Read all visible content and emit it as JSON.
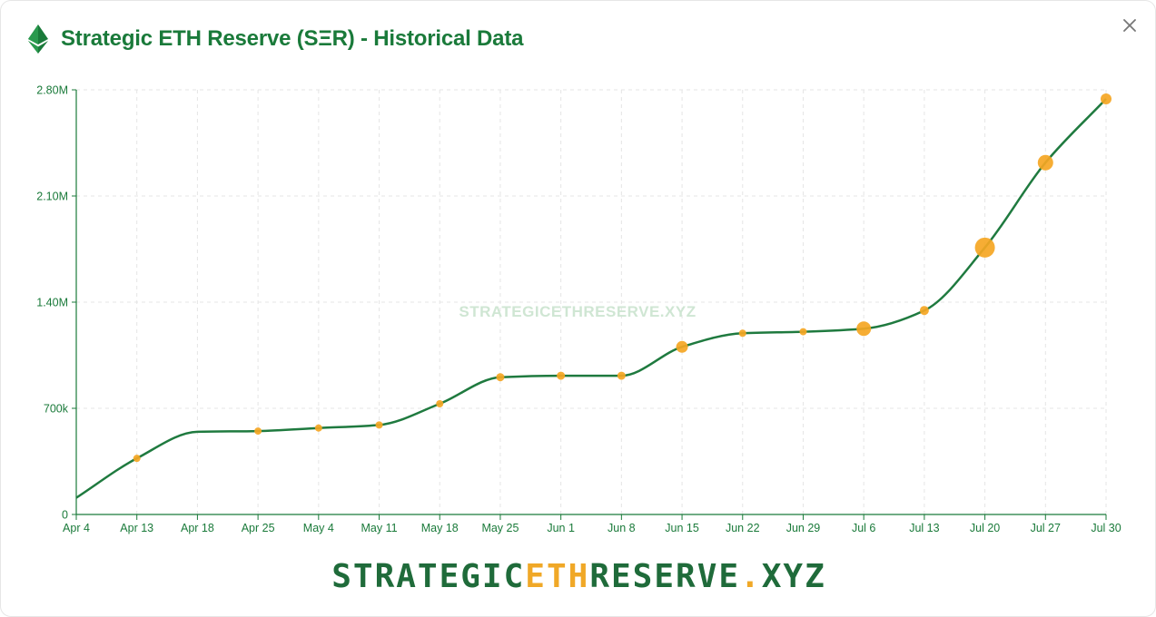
{
  "header": {
    "title": "Strategic ETH Reserve (SΞR) - Historical Data",
    "icon": "ethereum-icon"
  },
  "close": {
    "label": "×",
    "icon": "close-icon"
  },
  "watermark": "STRATEGICETHRESERVE.XYZ",
  "footer": {
    "part1": "STRATEGIC",
    "part2": "ETH",
    "part3": "RESERVE",
    "part4": ".",
    "part5": "XYZ"
  },
  "colors": {
    "brand_green": "#1a7a3a",
    "line": "#1f7a3f",
    "point": "#f5a623",
    "grid": "#e5e5e5"
  },
  "chart_data": {
    "type": "line",
    "title": "Strategic ETH Reserve (SΞR) - Historical Data",
    "xlabel": "",
    "ylabel": "",
    "categories": [
      "Apr 4",
      "Apr 13",
      "Apr 18",
      "Apr 25",
      "May 4",
      "May 11",
      "May 18",
      "May 25",
      "Jun 1",
      "Jun 8",
      "Jun 15",
      "Jun 22",
      "Jun 29",
      "Jul 6",
      "Jul 13",
      "Jul 20",
      "Jul 27",
      "Jul 30"
    ],
    "y_ticks": [
      {
        "value": 0,
        "label": "0"
      },
      {
        "value": 700000,
        "label": "700k"
      },
      {
        "value": 1400000,
        "label": "1.40M"
      },
      {
        "value": 2100000,
        "label": "2.10M"
      },
      {
        "value": 2800000,
        "label": "2.80M"
      }
    ],
    "ylim": [
      0,
      2800000
    ],
    "grid": true,
    "series": [
      {
        "name": "",
        "values": [
          110000,
          370000,
          545000,
          550000,
          570000,
          590000,
          730000,
          905000,
          915000,
          915000,
          1105000,
          1195000,
          1205000,
          1225000,
          1345000,
          1760000,
          2320000,
          2740000
        ],
        "point_sizes": [
          0,
          4,
          0,
          4,
          4,
          4,
          4,
          4.5,
          4.5,
          4.5,
          6.5,
          4,
          4,
          8,
          5,
          11,
          8.5,
          6
        ]
      }
    ]
  }
}
